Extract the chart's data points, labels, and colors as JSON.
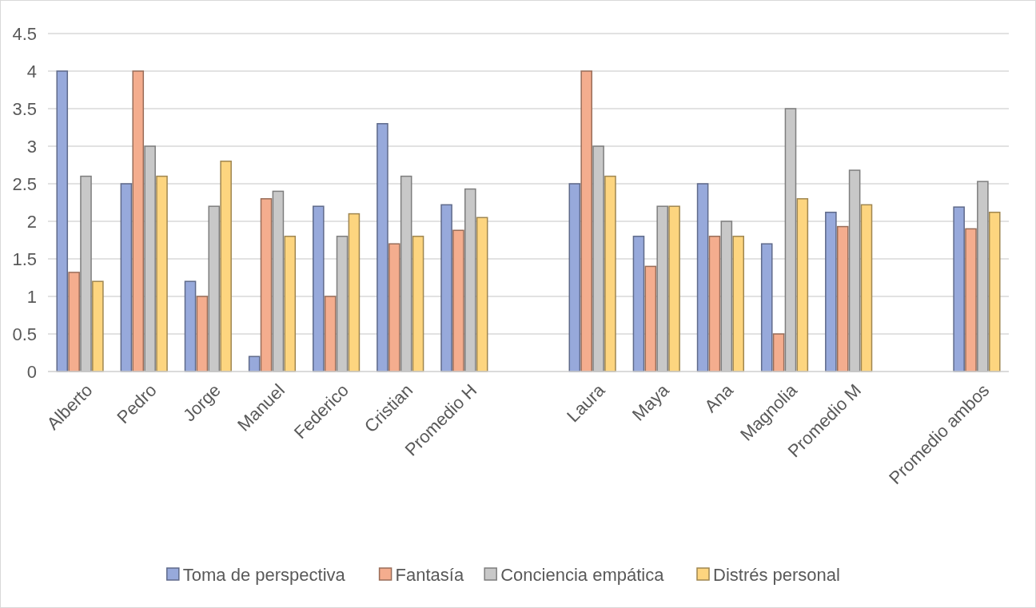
{
  "chart_data": {
    "type": "bar",
    "categories": [
      "Alberto",
      "Pedro",
      "Jorge",
      "Manuel",
      "Federico",
      "Cristian",
      "Promedio H",
      null,
      "Laura",
      "Maya",
      "Ana",
      "Magnolia",
      "Promedio M",
      null,
      "Promedio ambos"
    ],
    "series": [
      {
        "name": "Toma de perspectiva",
        "color": "#97a9db",
        "values": [
          4,
          2.5,
          1.2,
          0.2,
          2.2,
          3.3,
          2.22,
          null,
          2.5,
          1.8,
          2.5,
          1.7,
          2.12,
          null,
          2.19
        ]
      },
      {
        "name": "Fantasía",
        "color": "#f4ad8e",
        "values": [
          1.32,
          4,
          1,
          2.3,
          1,
          1.7,
          1.88,
          null,
          4,
          1.4,
          1.8,
          0.5,
          1.93,
          null,
          1.9
        ]
      },
      {
        "name": "Conciencia empática",
        "color": "#c8c8c8",
        "values": [
          2.6,
          3,
          2.2,
          2.4,
          1.8,
          2.6,
          2.43,
          null,
          3,
          2.2,
          2,
          3.5,
          2.68,
          null,
          2.53
        ]
      },
      {
        "name": "Distrés personal",
        "color": "#fdd57f",
        "values": [
          1.2,
          2.6,
          2.8,
          1.8,
          2.1,
          1.8,
          2.05,
          null,
          2.6,
          2.2,
          1.8,
          2.3,
          2.22,
          null,
          2.12
        ]
      }
    ],
    "ylim": [
      0,
      4.5
    ],
    "yticks": [
      0,
      0.5,
      1,
      1.5,
      2,
      2.5,
      3,
      3.5,
      4,
      4.5
    ],
    "grid": "y",
    "legend": "bottom"
  }
}
